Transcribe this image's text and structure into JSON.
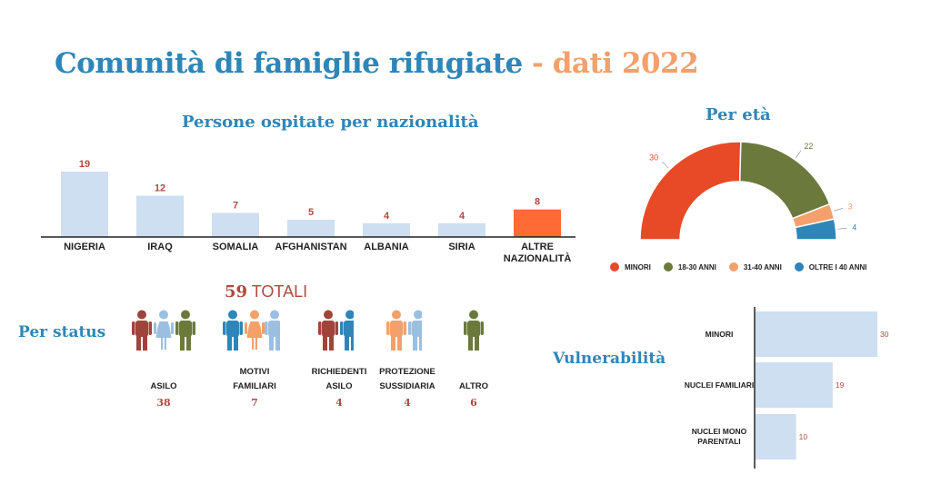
{
  "title": {
    "main": "Comunità di famiglie rifugiate",
    "separator": " - ",
    "highlight": "dati 2022"
  },
  "colors": {
    "title_blue": "#2e86b8",
    "accent_orange": "#f4a06b",
    "bar_light": "#cddff0",
    "bar_highlight": "#ff6b35",
    "count_red": "#b04a40"
  },
  "chart_data": [
    {
      "type": "bar",
      "title": "Persone ospitate per nazionalità",
      "categories": [
        "NIGERIA",
        "IRAQ",
        "SOMALIA",
        "AFGHANISTAN",
        "ALBANIA",
        "SIRIA",
        "ALTRE NAZIONALITÀ"
      ],
      "values": [
        19,
        12,
        7,
        5,
        4,
        4,
        8
      ],
      "highlight_index": 6,
      "ylim": [
        0,
        19
      ]
    },
    {
      "type": "pie",
      "subtype": "half-donut",
      "title": "Per età",
      "labels": [
        "MINORI",
        "18-30 ANNI",
        "31-40 ANNI",
        "OLTRE I 40 ANNI"
      ],
      "values": [
        30,
        22,
        3,
        4
      ],
      "colors": [
        "#e84a27",
        "#6b7a3c",
        "#f4a06b",
        "#2e86b8"
      ],
      "legend": "bottom"
    },
    {
      "type": "bar",
      "orientation": "horizontal",
      "title": "Vulnerabilità",
      "categories": [
        "MINORI",
        "NUCLEI FAMILIARI",
        "NUCLEI MONO PARENTALI"
      ],
      "values": [
        30,
        19,
        10
      ],
      "xlim": [
        0,
        30
      ]
    }
  ],
  "status": {
    "title": "Per status",
    "total_number": "59",
    "total_label": " TOTALI",
    "items": [
      {
        "label": "ASILO",
        "count": "38",
        "icons": [
          "man",
          "woman",
          "man"
        ],
        "colors": [
          "#a0443a",
          "#9bbfe0",
          "#6b7a3c"
        ]
      },
      {
        "label": "MOTIVI FAMILIARI",
        "count": "7",
        "icons": [
          "man",
          "woman",
          "man"
        ],
        "colors": [
          "#2e86b8",
          "#f4a06b",
          "#9bbfe0"
        ]
      },
      {
        "label": "RICHIEDENTI ASILO",
        "count": "4",
        "icons": [
          "man",
          "man"
        ],
        "colors": [
          "#a0443a",
          "#2e86b8"
        ]
      },
      {
        "label": "PROTEZIONE SUSSIDIARIA",
        "count": "4",
        "icons": [
          "man",
          "man"
        ],
        "colors": [
          "#f4a06b",
          "#9bbfe0"
        ]
      },
      {
        "label": "ALTRO",
        "count": "6",
        "icons": [
          "man"
        ],
        "colors": [
          "#6b7a3c"
        ]
      }
    ]
  }
}
